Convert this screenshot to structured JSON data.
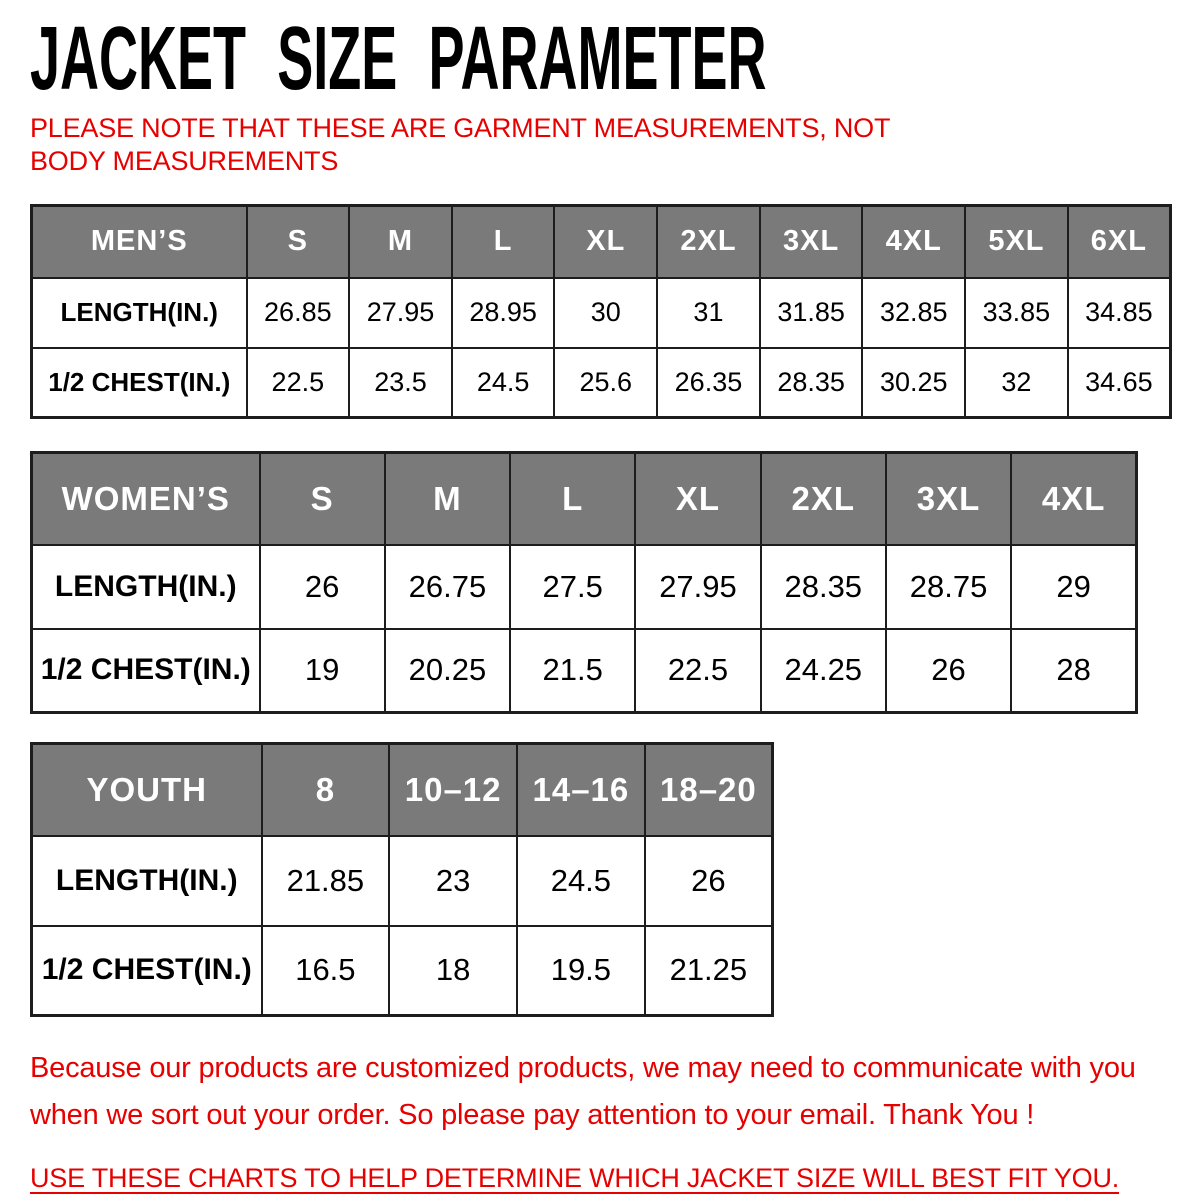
{
  "page": {
    "title": "JACKET SIZE PARAMETER",
    "note_line": "PLEASE NOTE THAT THESE ARE GARMENT MEASUREMENTS, NOT BODY MEASUREMENTS",
    "footer_paragraph": "Because our products are customized products, we may need to communicate with you when we sort out your order. So please pay attention to your email. Thank You !",
    "footer_underline": "USE THESE CHARTS TO HELP DETERMINE WHICH JACKET SIZE WILL BEST FIT YOU."
  },
  "colors": {
    "accent_red": "#e60000",
    "header_gray": "#7a7a7a",
    "header_text": "#ffffff",
    "border": "#1d1d1d"
  },
  "tables": [
    {
      "id": "mens",
      "group_label": "MEN’S",
      "sizes": [
        "S",
        "M",
        "L",
        "XL",
        "2XL",
        "3XL",
        "4XL",
        "5XL",
        "6XL"
      ],
      "rows": [
        {
          "label": "LENGTH(IN.)",
          "values": [
            "26.85",
            "27.95",
            "28.95",
            "30",
            "31",
            "31.85",
            "32.85",
            "33.85",
            "34.85"
          ]
        },
        {
          "label": "1/2 CHEST(IN.)",
          "values": [
            "22.5",
            "23.5",
            "24.5",
            "25.6",
            "26.35",
            "28.35",
            "30.25",
            "32",
            "34.65"
          ]
        }
      ]
    },
    {
      "id": "womens",
      "group_label": "WOMEN’S",
      "sizes": [
        "S",
        "M",
        "L",
        "XL",
        "2XL",
        "3XL",
        "4XL"
      ],
      "rows": [
        {
          "label": "LENGTH(IN.)",
          "values": [
            "26",
            "26.75",
            "27.5",
            "27.95",
            "28.35",
            "28.75",
            "29"
          ]
        },
        {
          "label": "1/2 CHEST(IN.)",
          "values": [
            "19",
            "20.25",
            "21.5",
            "22.5",
            "24.25",
            "26",
            "28"
          ]
        }
      ]
    },
    {
      "id": "youth",
      "group_label": "YOUTH",
      "sizes": [
        "8",
        "10–12",
        "14–16",
        "18–20"
      ],
      "rows": [
        {
          "label": "LENGTH(IN.)",
          "values": [
            "21.85",
            "23",
            "24.5",
            "26"
          ]
        },
        {
          "label": "1/2 CHEST(IN.)",
          "values": [
            "16.5",
            "18",
            "19.5",
            "21.25"
          ]
        }
      ]
    }
  ]
}
